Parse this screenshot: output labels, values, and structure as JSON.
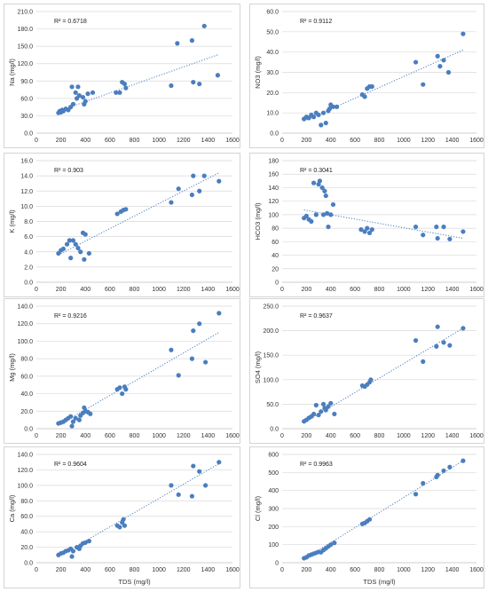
{
  "colors": {
    "marker": "#4a7ebf",
    "trendline": "#4a7ebf",
    "grid": "#d9d9d9",
    "axis": "#bfbfbf",
    "border": "#d4d4d4"
  },
  "chart_data": [
    {
      "type": "scatter",
      "ylabel": "Na (mg/l)",
      "xlabel": "",
      "r2": "R² = 0.6718",
      "xlim": [
        0,
        1600
      ],
      "xticks": [
        "0",
        "200",
        "400",
        "600",
        "800",
        "1000",
        "1200",
        "1400",
        "1600"
      ],
      "ylim": [
        0,
        210
      ],
      "yticks": [
        "0.0",
        "30.0",
        "60.0",
        "90.0",
        "120.0",
        "150.0",
        "180.0",
        "210.0"
      ],
      "trendline": {
        "x": [
          180,
          1490
        ],
        "y": [
          38,
          136
        ]
      },
      "points": [
        [
          180,
          35
        ],
        [
          190,
          38
        ],
        [
          200,
          36
        ],
        [
          210,
          40
        ],
        [
          220,
          38
        ],
        [
          240,
          42
        ],
        [
          260,
          40
        ],
        [
          280,
          45
        ],
        [
          290,
          80
        ],
        [
          300,
          50
        ],
        [
          320,
          70
        ],
        [
          330,
          60
        ],
        [
          340,
          80
        ],
        [
          350,
          65
        ],
        [
          380,
          62
        ],
        [
          390,
          50
        ],
        [
          400,
          55
        ],
        [
          420,
          68
        ],
        [
          460,
          70
        ],
        [
          650,
          70
        ],
        [
          680,
          70
        ],
        [
          700,
          88
        ],
        [
          720,
          85
        ],
        [
          730,
          78
        ],
        [
          1100,
          82
        ],
        [
          1150,
          155
        ],
        [
          1270,
          160
        ],
        [
          1280,
          88
        ],
        [
          1330,
          85
        ],
        [
          1370,
          185
        ],
        [
          1480,
          100
        ]
      ]
    },
    {
      "type": "scatter",
      "ylabel": "NO3 (mg/l)",
      "xlabel": "",
      "r2": "R² = 0.9112",
      "xlim": [
        0,
        1600
      ],
      "xticks": [
        "0",
        "200",
        "400",
        "600",
        "800",
        "1000",
        "1200",
        "1400",
        "1600"
      ],
      "ylim": [
        0,
        60
      ],
      "yticks": [
        "0.0",
        "10.0",
        "20.0",
        "30.0",
        "40.0",
        "50.0",
        "60.0"
      ],
      "trendline": {
        "x": [
          180,
          1490
        ],
        "y": [
          6,
          41
        ]
      },
      "points": [
        [
          180,
          7
        ],
        [
          200,
          8
        ],
        [
          220,
          7.5
        ],
        [
          240,
          9
        ],
        [
          260,
          8
        ],
        [
          280,
          10
        ],
        [
          300,
          9
        ],
        [
          320,
          4
        ],
        [
          340,
          10
        ],
        [
          360,
          5
        ],
        [
          380,
          11
        ],
        [
          390,
          12
        ],
        [
          400,
          14
        ],
        [
          420,
          13
        ],
        [
          450,
          13
        ],
        [
          660,
          19
        ],
        [
          680,
          18
        ],
        [
          700,
          22
        ],
        [
          720,
          23
        ],
        [
          740,
          23
        ],
        [
          1100,
          35
        ],
        [
          1160,
          24
        ],
        [
          1280,
          38
        ],
        [
          1300,
          33
        ],
        [
          1330,
          36
        ],
        [
          1370,
          30
        ],
        [
          1490,
          49
        ]
      ]
    },
    {
      "type": "scatter",
      "ylabel": "K (mg/l)",
      "xlabel": "",
      "r2": "R² = 0.903",
      "xlim": [
        0,
        1600
      ],
      "xticks": [
        "0",
        "200",
        "400",
        "600",
        "800",
        "1000",
        "1200",
        "1400",
        "1600"
      ],
      "ylim": [
        0,
        16
      ],
      "yticks": [
        "0.0",
        "2.0",
        "4.0",
        "6.0",
        "8.0",
        "10.0",
        "12.0",
        "14.0",
        "16.0"
      ],
      "trendline": {
        "x": [
          180,
          1490
        ],
        "y": [
          3.6,
          14.4
        ]
      },
      "points": [
        [
          180,
          3.8
        ],
        [
          200,
          4.2
        ],
        [
          220,
          4.4
        ],
        [
          250,
          5
        ],
        [
          270,
          5.5
        ],
        [
          280,
          3.2
        ],
        [
          300,
          5.5
        ],
        [
          320,
          5
        ],
        [
          340,
          4.5
        ],
        [
          360,
          4
        ],
        [
          380,
          6.5
        ],
        [
          390,
          3
        ],
        [
          400,
          6.3
        ],
        [
          430,
          3.8
        ],
        [
          660,
          9
        ],
        [
          690,
          9.3
        ],
        [
          710,
          9.5
        ],
        [
          730,
          9.6
        ],
        [
          1100,
          10.5
        ],
        [
          1160,
          12.3
        ],
        [
          1270,
          11.5
        ],
        [
          1280,
          14
        ],
        [
          1330,
          12
        ],
        [
          1370,
          14
        ],
        [
          1490,
          13.3
        ]
      ]
    },
    {
      "type": "scatter",
      "ylabel": "HCO3 (mg/l)",
      "xlabel": "",
      "r2": "R² = 0.3041",
      "xlim": [
        0,
        1600
      ],
      "xticks": [
        "0",
        "200",
        "400",
        "600",
        "800",
        "1000",
        "1200",
        "1400",
        "1600"
      ],
      "ylim": [
        0,
        180
      ],
      "yticks": [
        "0",
        "20",
        "40",
        "60",
        "80",
        "100",
        "120",
        "140",
        "160",
        "180"
      ],
      "trendline": {
        "x": [
          180,
          1490
        ],
        "y": [
          107,
          65
        ]
      },
      "points": [
        [
          180,
          95
        ],
        [
          200,
          98
        ],
        [
          220,
          93
        ],
        [
          240,
          90
        ],
        [
          260,
          147
        ],
        [
          280,
          100
        ],
        [
          300,
          145
        ],
        [
          310,
          150
        ],
        [
          330,
          140
        ],
        [
          340,
          100
        ],
        [
          350,
          135
        ],
        [
          360,
          128
        ],
        [
          370,
          102
        ],
        [
          380,
          82
        ],
        [
          400,
          100
        ],
        [
          420,
          115
        ],
        [
          650,
          78
        ],
        [
          680,
          75
        ],
        [
          700,
          80
        ],
        [
          720,
          73
        ],
        [
          740,
          78
        ],
        [
          1100,
          82
        ],
        [
          1160,
          70
        ],
        [
          1270,
          82
        ],
        [
          1280,
          65
        ],
        [
          1330,
          82
        ],
        [
          1380,
          64
        ],
        [
          1490,
          75
        ]
      ]
    },
    {
      "type": "scatter",
      "ylabel": "Mg (mg/l)",
      "xlabel": "",
      "r2": "R² = 0.9216",
      "xlim": [
        0,
        1600
      ],
      "xticks": [
        "0",
        "200",
        "400",
        "600",
        "800",
        "1000",
        "1200",
        "1400",
        "1600"
      ],
      "ylim": [
        0,
        140
      ],
      "yticks": [
        "0.0",
        "20.0",
        "40.0",
        "60.0",
        "80.0",
        "100.0",
        "120.0",
        "140.0"
      ],
      "trendline": {
        "x": [
          180,
          1490
        ],
        "y": [
          4,
          110
        ]
      },
      "points": [
        [
          180,
          6
        ],
        [
          200,
          7
        ],
        [
          220,
          8
        ],
        [
          240,
          10
        ],
        [
          260,
          12
        ],
        [
          280,
          14
        ],
        [
          290,
          3
        ],
        [
          300,
          8
        ],
        [
          320,
          12
        ],
        [
          350,
          10
        ],
        [
          360,
          15
        ],
        [
          380,
          18
        ],
        [
          390,
          24
        ],
        [
          400,
          20
        ],
        [
          420,
          19
        ],
        [
          440,
          17
        ],
        [
          660,
          45
        ],
        [
          680,
          47
        ],
        [
          700,
          40
        ],
        [
          720,
          48
        ],
        [
          730,
          45
        ],
        [
          1100,
          90
        ],
        [
          1160,
          61
        ],
        [
          1270,
          80
        ],
        [
          1280,
          112
        ],
        [
          1330,
          120
        ],
        [
          1380,
          76
        ],
        [
          1490,
          132
        ]
      ]
    },
    {
      "type": "scatter",
      "ylabel": "SO4 (mg/l)",
      "xlabel": "",
      "r2": "R² = 0.9637",
      "xlim": [
        0,
        1600
      ],
      "xticks": [
        "0",
        "200",
        "400",
        "600",
        "800",
        "1000",
        "1200",
        "1400",
        "1600"
      ],
      "ylim": [
        0,
        250
      ],
      "yticks": [
        "0.0",
        "50.0",
        "100.0",
        "150.0",
        "200.0",
        "250.0"
      ],
      "trendline": {
        "x": [
          180,
          1490
        ],
        "y": [
          12,
          205
        ]
      },
      "points": [
        [
          180,
          15
        ],
        [
          200,
          18
        ],
        [
          220,
          22
        ],
        [
          240,
          25
        ],
        [
          260,
          30
        ],
        [
          280,
          48
        ],
        [
          300,
          28
        ],
        [
          320,
          35
        ],
        [
          340,
          50
        ],
        [
          350,
          42
        ],
        [
          360,
          38
        ],
        [
          380,
          45
        ],
        [
          400,
          52
        ],
        [
          430,
          30
        ],
        [
          660,
          88
        ],
        [
          680,
          86
        ],
        [
          700,
          90
        ],
        [
          720,
          95
        ],
        [
          730,
          100
        ],
        [
          1100,
          180
        ],
        [
          1160,
          137
        ],
        [
          1270,
          168
        ],
        [
          1280,
          208
        ],
        [
          1330,
          176
        ],
        [
          1380,
          170
        ],
        [
          1490,
          205
        ]
      ]
    },
    {
      "type": "scatter",
      "ylabel": "Ca (mg/l)",
      "xlabel": "TDS (mg/l)",
      "r2": "R² = 0.9604",
      "xlim": [
        0,
        1600
      ],
      "xticks": [
        "0",
        "200",
        "400",
        "600",
        "800",
        "1000",
        "1200",
        "1400",
        "1600"
      ],
      "ylim": [
        0,
        140
      ],
      "yticks": [
        "0.0",
        "20.0",
        "40.0",
        "60.0",
        "80.0",
        "100.0",
        "120.0",
        "140.0"
      ],
      "trendline": {
        "x": [
          180,
          1490
        ],
        "y": [
          8,
          128
        ]
      },
      "points": [
        [
          180,
          10
        ],
        [
          200,
          12
        ],
        [
          220,
          13
        ],
        [
          240,
          15
        ],
        [
          260,
          16
        ],
        [
          280,
          18
        ],
        [
          290,
          8
        ],
        [
          300,
          15
        ],
        [
          330,
          20
        ],
        [
          350,
          18
        ],
        [
          360,
          22
        ],
        [
          380,
          25
        ],
        [
          400,
          26
        ],
        [
          430,
          28
        ],
        [
          660,
          48
        ],
        [
          680,
          46
        ],
        [
          700,
          52
        ],
        [
          710,
          56
        ],
        [
          720,
          48
        ],
        [
          1100,
          100
        ],
        [
          1160,
          88
        ],
        [
          1270,
          86
        ],
        [
          1280,
          125
        ],
        [
          1330,
          118
        ],
        [
          1380,
          100
        ],
        [
          1490,
          130
        ]
      ]
    },
    {
      "type": "scatter",
      "ylabel": "Cl (mg/l)",
      "xlabel": "TDS (mg/l)",
      "r2": "R² = 0.9963",
      "xlim": [
        0,
        1600
      ],
      "xticks": [
        "0",
        "200",
        "400",
        "600",
        "800",
        "1000",
        "1200",
        "1400",
        "1600"
      ],
      "ylim": [
        0,
        600
      ],
      "yticks": [
        "0",
        "100",
        "200",
        "300",
        "400",
        "500",
        "600"
      ],
      "trendline": {
        "x": [
          180,
          1490
        ],
        "y": [
          20,
          565
        ]
      },
      "points": [
        [
          180,
          25
        ],
        [
          200,
          30
        ],
        [
          220,
          40
        ],
        [
          240,
          45
        ],
        [
          260,
          50
        ],
        [
          280,
          55
        ],
        [
          300,
          60
        ],
        [
          320,
          58
        ],
        [
          340,
          70
        ],
        [
          360,
          80
        ],
        [
          380,
          90
        ],
        [
          400,
          100
        ],
        [
          430,
          110
        ],
        [
          660,
          215
        ],
        [
          680,
          220
        ],
        [
          700,
          230
        ],
        [
          720,
          240
        ],
        [
          1100,
          380
        ],
        [
          1160,
          440
        ],
        [
          1270,
          475
        ],
        [
          1280,
          485
        ],
        [
          1330,
          510
        ],
        [
          1380,
          530
        ],
        [
          1490,
          565
        ]
      ]
    }
  ]
}
